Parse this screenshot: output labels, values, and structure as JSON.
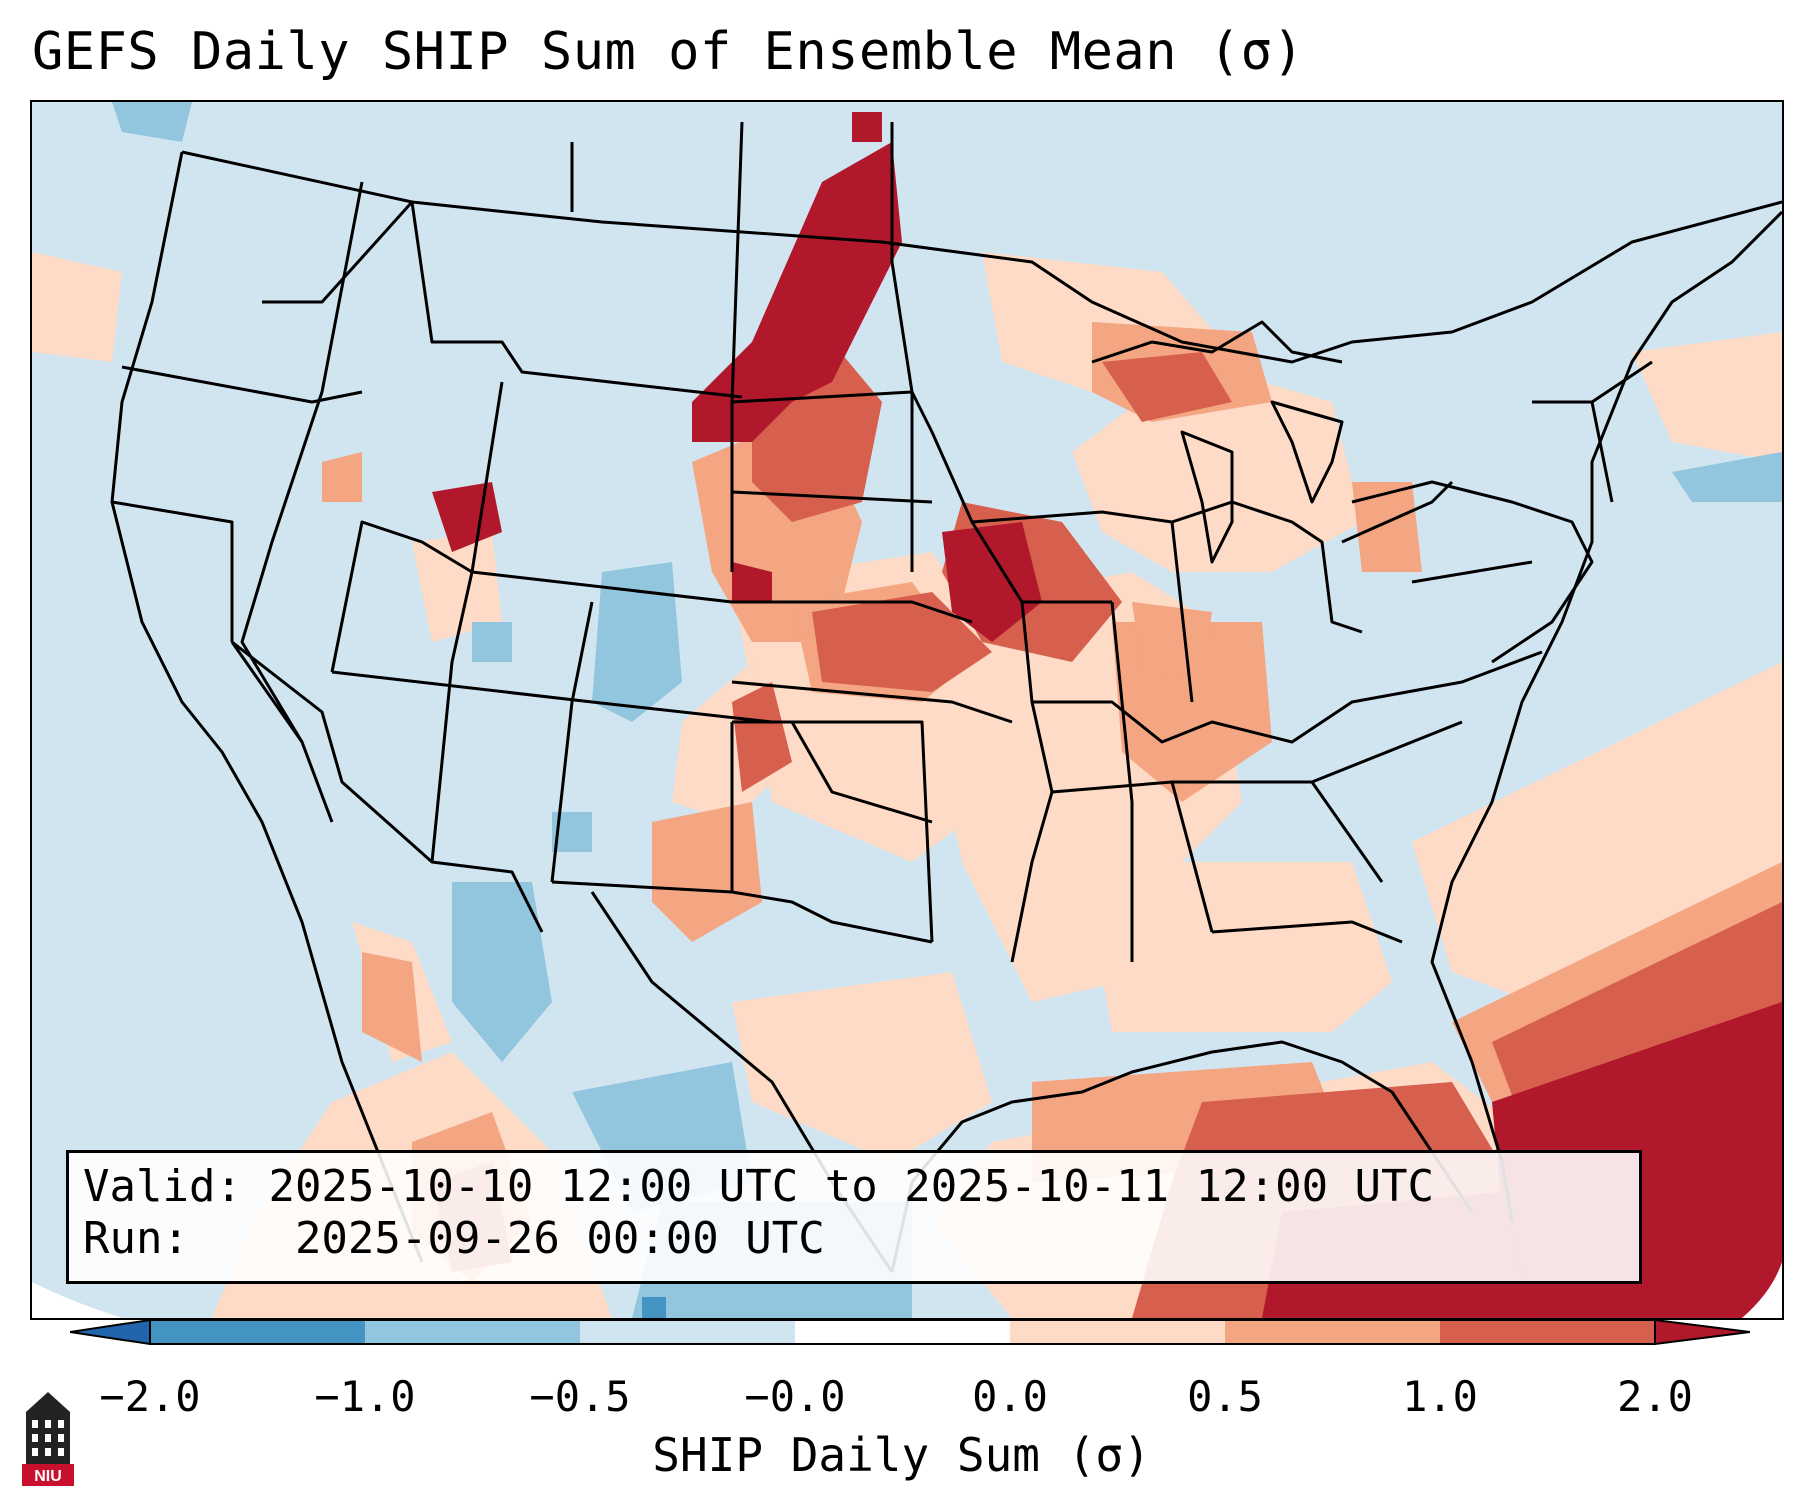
{
  "title": "GEFS Daily SHIP Sum of Ensemble Mean (σ)",
  "info_box": {
    "valid_label": "Valid:",
    "valid_value": "2025-10-10 12:00 UTC to 2025-10-11 12:00 UTC",
    "run_label": "Run:",
    "run_value": "2025-09-26 00:00 UTC"
  },
  "colorbar": {
    "label": "SHIP Daily Sum (σ)",
    "ticks": [
      "−2.0",
      "−1.0",
      "−0.5",
      "−0.0",
      "0.0",
      "0.5",
      "1.0",
      "2.0"
    ],
    "colors": [
      "#2166ac",
      "#4393c3",
      "#92c5de",
      "#d1e5f0",
      "#fddbc7",
      "#f4a582",
      "#d6604d",
      "#b2182b"
    ]
  },
  "logo": {
    "text": "NIU",
    "icon": "niu-tower-logo-icon"
  },
  "map": {
    "region": "Contiguous United States",
    "background_color": "#d1e5f0",
    "icons": [
      "state-boundaries",
      "coastline"
    ]
  }
}
